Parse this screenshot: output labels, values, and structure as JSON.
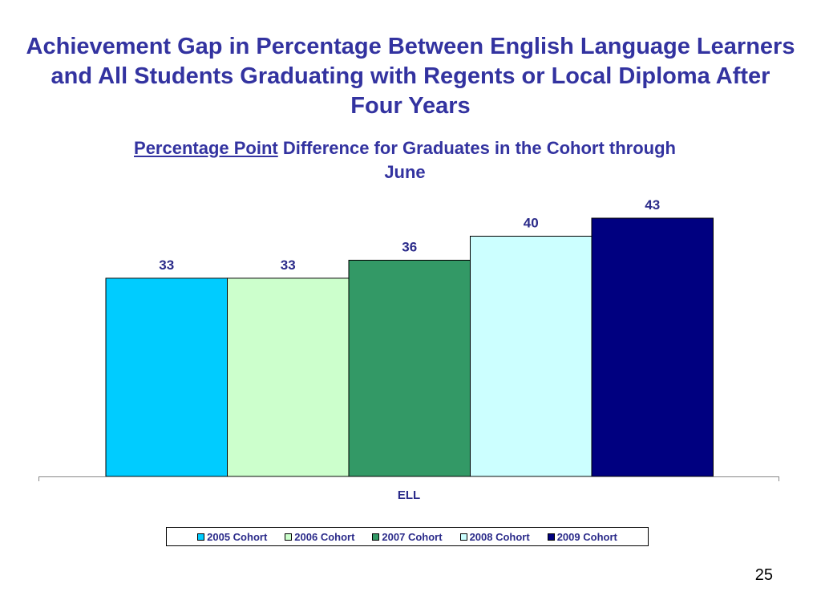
{
  "slide": {
    "title": "Achievement Gap in Percentage Between English Language Learners and All Students Graduating with Regents or Local Diploma After Four Years",
    "subtitle_emphasis": "Percentage Point",
    "subtitle_rest": " Difference for Graduates in the Cohort through June",
    "page_number": "25"
  },
  "chart_data": {
    "type": "bar",
    "categories": [
      "ELL"
    ],
    "series": [
      {
        "name": "2005 Cohort",
        "values": [
          33
        ],
        "color": "#00ccff"
      },
      {
        "name": "2006 Cohort",
        "values": [
          33
        ],
        "color": "#ccffcc"
      },
      {
        "name": "2007 Cohort",
        "values": [
          36
        ],
        "color": "#339966"
      },
      {
        "name": "2008 Cohort",
        "values": [
          40
        ],
        "color": "#ccffff"
      },
      {
        "name": "2009 Cohort",
        "values": [
          43
        ],
        "color": "#000080"
      }
    ],
    "ylim": [
      0,
      43
    ],
    "grid": false,
    "legend_position": "bottom"
  }
}
